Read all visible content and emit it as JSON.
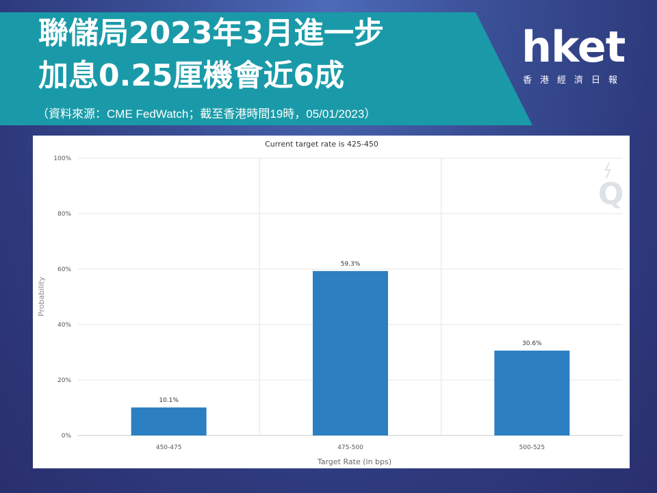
{
  "header": {
    "title_line1": "聯儲局2023年3月進一步",
    "title_line2": "加息0.25厘機會近6成",
    "source": "（資料來源：CME FedWatch；截至香港時間19時，05/01/2023）"
  },
  "logo": {
    "wordmark": "hket",
    "subtitle": "香港經濟日報"
  },
  "colors": {
    "banner": "#1a9aa8",
    "bar": "#2c7fc1",
    "grid": "#e4e4e4"
  },
  "chart_data": {
    "type": "bar",
    "title": "Current target rate is 425-450",
    "xlabel": "Target Rate (in bps)",
    "ylabel": "Probability",
    "categories": [
      "450-475",
      "475-500",
      "500-525"
    ],
    "values": [
      10.1,
      59.3,
      30.6
    ],
    "data_labels": [
      "10.1%",
      "59.3%",
      "30.6%"
    ],
    "ylim": [
      0,
      100
    ],
    "yticks": [
      "0%",
      "20%",
      "40%",
      "60%",
      "80%",
      "100%"
    ],
    "ytick_values": [
      0,
      20,
      40,
      60,
      80,
      100
    ],
    "grid": true,
    "watermark_icon": "q-watermark-icon"
  }
}
